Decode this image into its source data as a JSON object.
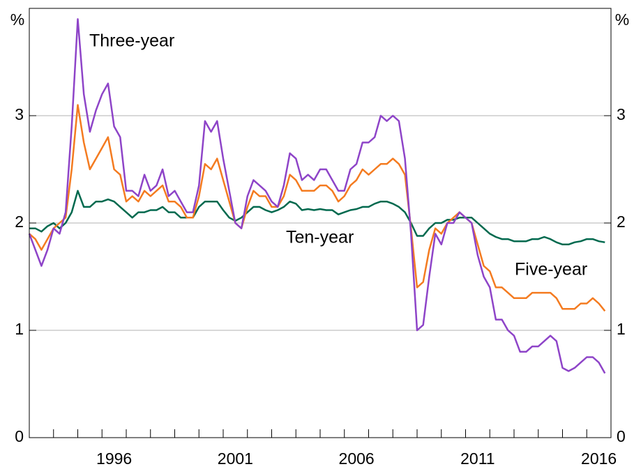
{
  "chart_data": {
    "type": "line",
    "unit": "%",
    "x": [
      1993,
      1993.25,
      1993.5,
      1993.75,
      1994,
      1994.25,
      1994.5,
      1994.75,
      1995,
      1995.25,
      1995.5,
      1995.75,
      1996,
      1996.25,
      1996.5,
      1996.75,
      1997,
      1997.25,
      1997.5,
      1997.75,
      1998,
      1998.25,
      1998.5,
      1998.75,
      1999,
      1999.25,
      1999.5,
      1999.75,
      2000,
      2000.25,
      2000.5,
      2000.75,
      2001,
      2001.25,
      2001.5,
      2001.75,
      2002,
      2002.25,
      2002.5,
      2002.75,
      2003,
      2003.25,
      2003.5,
      2003.75,
      2004,
      2004.25,
      2004.5,
      2004.75,
      2005,
      2005.25,
      2005.5,
      2005.75,
      2006,
      2006.25,
      2006.5,
      2006.75,
      2007,
      2007.25,
      2007.5,
      2007.75,
      2008,
      2008.25,
      2008.5,
      2008.75,
      2009,
      2009.25,
      2009.5,
      2009.75,
      2010,
      2010.25,
      2010.5,
      2010.75,
      2011,
      2011.25,
      2011.5,
      2011.75,
      2012,
      2012.25,
      2012.5,
      2012.75,
      2013,
      2013.25,
      2013.5,
      2013.75,
      2014,
      2014.25,
      2014.5,
      2014.75,
      2015,
      2015.25,
      2015.5,
      2015.75,
      2016,
      2016.25,
      2016.5,
      2016.75
    ],
    "series": [
      {
        "name": "Three-year",
        "color": "#8e44c8",
        "values": [
          1.9,
          1.75,
          1.6,
          1.75,
          1.95,
          1.9,
          2.1,
          2.9,
          3.9,
          3.2,
          2.85,
          3.05,
          3.2,
          3.3,
          2.9,
          2.8,
          2.3,
          2.3,
          2.25,
          2.45,
          2.3,
          2.35,
          2.5,
          2.25,
          2.3,
          2.2,
          2.1,
          2.1,
          2.35,
          2.95,
          2.85,
          2.95,
          2.6,
          2.3,
          2.0,
          1.95,
          2.25,
          2.4,
          2.35,
          2.3,
          2.2,
          2.15,
          2.35,
          2.65,
          2.6,
          2.4,
          2.45,
          2.4,
          2.5,
          2.5,
          2.4,
          2.3,
          2.3,
          2.5,
          2.55,
          2.75,
          2.75,
          2.8,
          3.0,
          2.95,
          3.0,
          2.95,
          2.6,
          1.9,
          1.0,
          1.05,
          1.5,
          1.9,
          1.8,
          2.0,
          2.0,
          2.1,
          2.05,
          2.0,
          1.7,
          1.5,
          1.4,
          1.1,
          1.1,
          1.0,
          0.95,
          0.8,
          0.8,
          0.85,
          0.85,
          0.9,
          0.95,
          0.9,
          0.65,
          0.62,
          0.65,
          0.7,
          0.75,
          0.75,
          0.7,
          0.6
        ]
      },
      {
        "name": "Five-year",
        "color": "#f47b20",
        "values": [
          1.9,
          1.85,
          1.75,
          1.85,
          1.95,
          2.0,
          2.05,
          2.5,
          3.1,
          2.75,
          2.5,
          2.6,
          2.7,
          2.8,
          2.5,
          2.45,
          2.2,
          2.25,
          2.2,
          2.3,
          2.25,
          2.3,
          2.35,
          2.2,
          2.2,
          2.15,
          2.05,
          2.05,
          2.25,
          2.55,
          2.5,
          2.6,
          2.4,
          2.2,
          2.0,
          1.95,
          2.15,
          2.3,
          2.25,
          2.25,
          2.15,
          2.15,
          2.25,
          2.45,
          2.4,
          2.3,
          2.3,
          2.3,
          2.35,
          2.35,
          2.3,
          2.2,
          2.25,
          2.35,
          2.4,
          2.5,
          2.45,
          2.5,
          2.55,
          2.55,
          2.6,
          2.55,
          2.45,
          1.95,
          1.4,
          1.45,
          1.75,
          1.95,
          1.9,
          2.0,
          2.05,
          2.1,
          2.05,
          2.0,
          1.8,
          1.6,
          1.55,
          1.4,
          1.4,
          1.35,
          1.3,
          1.3,
          1.3,
          1.35,
          1.35,
          1.35,
          1.35,
          1.3,
          1.2,
          1.2,
          1.2,
          1.25,
          1.25,
          1.3,
          1.25,
          1.18
        ]
      },
      {
        "name": "Ten-year",
        "color": "#00694e",
        "values": [
          1.95,
          1.95,
          1.92,
          1.97,
          2.0,
          1.95,
          2.0,
          2.1,
          2.3,
          2.15,
          2.15,
          2.2,
          2.2,
          2.22,
          2.2,
          2.15,
          2.1,
          2.05,
          2.1,
          2.1,
          2.12,
          2.12,
          2.15,
          2.1,
          2.1,
          2.05,
          2.05,
          2.05,
          2.15,
          2.2,
          2.2,
          2.2,
          2.12,
          2.05,
          2.02,
          2.05,
          2.1,
          2.15,
          2.15,
          2.12,
          2.1,
          2.12,
          2.15,
          2.2,
          2.18,
          2.12,
          2.13,
          2.12,
          2.13,
          2.12,
          2.12,
          2.08,
          2.1,
          2.12,
          2.13,
          2.15,
          2.15,
          2.18,
          2.2,
          2.2,
          2.18,
          2.15,
          2.1,
          2.0,
          1.88,
          1.88,
          1.95,
          2.0,
          2.0,
          2.03,
          2.03,
          2.05,
          2.05,
          2.05,
          2.0,
          1.95,
          1.9,
          1.87,
          1.85,
          1.85,
          1.83,
          1.83,
          1.83,
          1.85,
          1.85,
          1.87,
          1.85,
          1.82,
          1.8,
          1.8,
          1.82,
          1.83,
          1.85,
          1.85,
          1.83,
          1.82
        ]
      }
    ],
    "xlim": [
      1993,
      2017
    ],
    "xticks": [
      1993,
      1994,
      1995,
      1996,
      1997,
      1998,
      1999,
      2000,
      2001,
      2002,
      2003,
      2004,
      2005,
      2006,
      2007,
      2008,
      2009,
      2010,
      2011,
      2012,
      2013,
      2014,
      2015,
      2016,
      2017
    ],
    "xlabels": [
      {
        "value": 1996.5,
        "label": "1996"
      },
      {
        "value": 2001.5,
        "label": "2001"
      },
      {
        "value": 2006.5,
        "label": "2006"
      },
      {
        "value": 2011.5,
        "label": "2011"
      },
      {
        "value": 2016.5,
        "label": "2016"
      }
    ],
    "ylim": [
      0,
      4
    ],
    "yticks": [
      0,
      1,
      2,
      3
    ],
    "grid": true
  }
}
